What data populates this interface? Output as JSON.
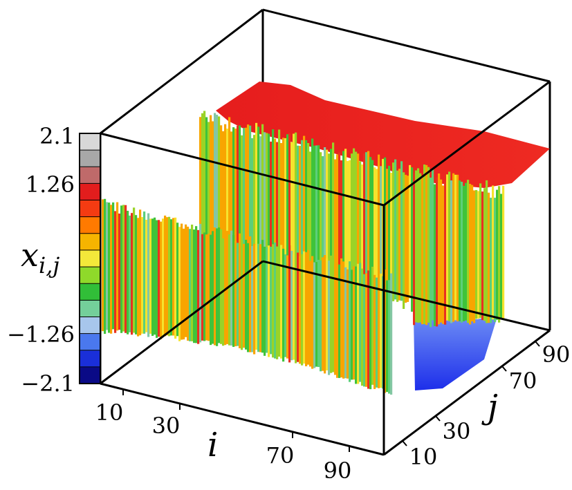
{
  "chart_data": {
    "type": "surface3d",
    "zlabel": "x_{i,j}",
    "xlabel": "i",
    "ylabel": "j",
    "colorbar": {
      "ticks": [
        "2.1",
        "1.26",
        "−1.26",
        "−2.1"
      ],
      "range": [
        -2.1,
        2.1
      ],
      "colors": [
        "#0a0a86",
        "#1a2fd9",
        "#4a78ee",
        "#a7c6ec",
        "#74cf9a",
        "#31be38",
        "#8fd92a",
        "#f3e83a",
        "#f6b400",
        "#ff7a00",
        "#f43b12",
        "#e21d1d",
        "#bf6a6a",
        "#a8a8a8",
        "#d8d8d8"
      ]
    },
    "x_ticks": [
      "10",
      "30",
      "70",
      "90"
    ],
    "y_ticks": [
      "10",
      "30",
      "70",
      "90"
    ],
    "surface": {
      "plateau_high_value": 1.6,
      "plateau_low_value": -1.6,
      "oscillating_band_colors": [
        "#e93020",
        "#f8a500",
        "#f5e32d",
        "#9ad327",
        "#3fc33a",
        "#5ccf7a",
        "#84c7a4"
      ]
    }
  }
}
